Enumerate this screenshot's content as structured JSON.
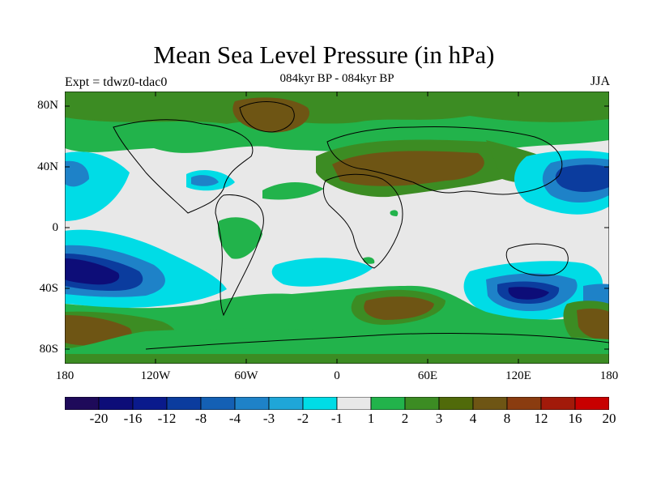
{
  "title": "Mean Sea Level Pressure (in hPa)",
  "subtitle": "084kyr BP - 084kyr BP",
  "experiment": "Expt = tdwz0-tdac0",
  "season": "JJA",
  "map": {
    "type": "filled-contour-world-map",
    "projection": "cylindrical-equidistant",
    "lon_range": [
      -180,
      180
    ],
    "lat_range": [
      -90,
      90
    ],
    "y_ticks": [
      "80N",
      "40N",
      "0",
      "40S",
      "80S"
    ],
    "x_ticks": [
      "180",
      "120W",
      "60W",
      "0",
      "60E",
      "120E",
      "180"
    ]
  },
  "colorbar": {
    "labels": [
      "-20",
      "-16",
      "-12",
      "-8",
      "-4",
      "-3",
      "-2",
      "-1",
      "1",
      "2",
      "3",
      "4",
      "8",
      "12",
      "16",
      "20"
    ],
    "colors": [
      "#1e0a5a",
      "#0d0d78",
      "#0a1a8c",
      "#0b3c9e",
      "#1460b4",
      "#1e82c8",
      "#1fa6d8",
      "#00dce6",
      "#e8e8e8",
      "#22b34b",
      "#3c8c23",
      "#506a0a",
      "#6e5514",
      "#8a3c10",
      "#a21a0a",
      "#c80000"
    ]
  }
}
